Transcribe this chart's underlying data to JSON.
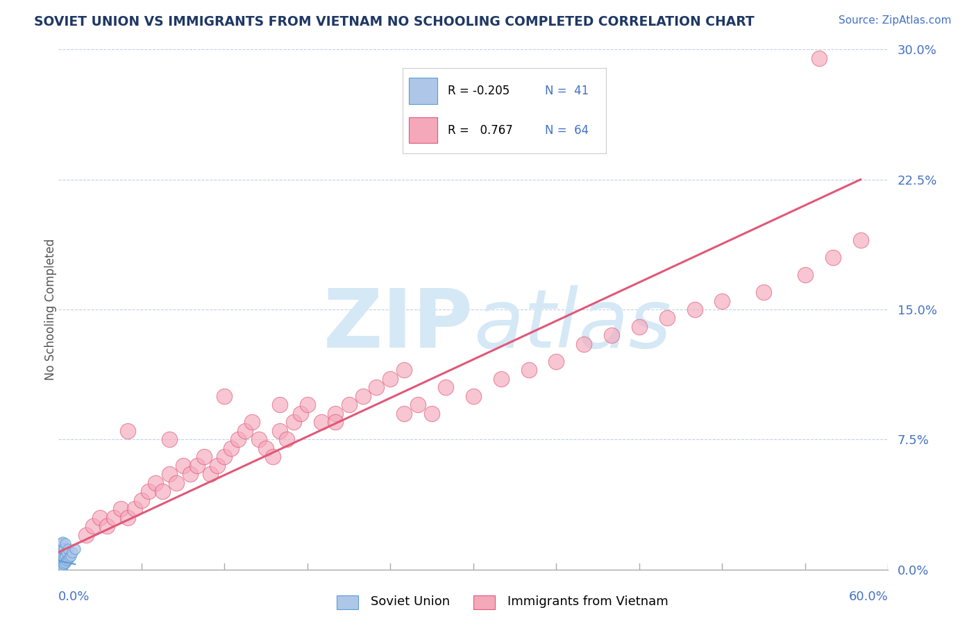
{
  "title": "SOVIET UNION VS IMMIGRANTS FROM VIETNAM NO SCHOOLING COMPLETED CORRELATION CHART",
  "source_text": "Source: ZipAtlas.com",
  "ylabel": "No Schooling Completed",
  "ytick_values": [
    0.0,
    0.075,
    0.15,
    0.225,
    0.3
  ],
  "xmin": 0.0,
  "xmax": 0.6,
  "ymin": 0.0,
  "ymax": 0.3,
  "color_soviet": "#aec6e8",
  "color_vietnam": "#f4a8ba",
  "color_soviet_line": "#5b9bd5",
  "color_vietnam_line": "#e05878",
  "title_color": "#1f3864",
  "axis_color": "#4472c4",
  "grid_color": "#c0d0e8",
  "watermark_color": "#d5e8f5",
  "soviet_x": [
    0.001,
    0.001,
    0.001,
    0.001,
    0.001,
    0.001,
    0.001,
    0.001,
    0.001,
    0.001,
    0.002,
    0.002,
    0.002,
    0.002,
    0.002,
    0.002,
    0.002,
    0.002,
    0.002,
    0.002,
    0.002,
    0.003,
    0.003,
    0.003,
    0.003,
    0.003,
    0.003,
    0.004,
    0.004,
    0.004,
    0.005,
    0.005,
    0.005,
    0.006,
    0.006,
    0.007,
    0.007,
    0.008,
    0.009,
    0.01,
    0.012
  ],
  "soviet_y": [
    0.001,
    0.002,
    0.003,
    0.004,
    0.005,
    0.006,
    0.007,
    0.008,
    0.009,
    0.01,
    0.001,
    0.002,
    0.003,
    0.004,
    0.005,
    0.006,
    0.007,
    0.008,
    0.01,
    0.012,
    0.015,
    0.002,
    0.004,
    0.006,
    0.008,
    0.012,
    0.016,
    0.003,
    0.007,
    0.012,
    0.004,
    0.008,
    0.015,
    0.005,
    0.01,
    0.006,
    0.012,
    0.007,
    0.008,
    0.01,
    0.012
  ],
  "vietnam_x": [
    0.02,
    0.025,
    0.03,
    0.035,
    0.04,
    0.045,
    0.05,
    0.055,
    0.06,
    0.065,
    0.07,
    0.075,
    0.08,
    0.085,
    0.09,
    0.095,
    0.1,
    0.105,
    0.11,
    0.115,
    0.12,
    0.125,
    0.13,
    0.135,
    0.14,
    0.145,
    0.15,
    0.155,
    0.16,
    0.165,
    0.17,
    0.175,
    0.18,
    0.19,
    0.2,
    0.21,
    0.22,
    0.23,
    0.24,
    0.25,
    0.26,
    0.27,
    0.28,
    0.3,
    0.32,
    0.34,
    0.36,
    0.38,
    0.4,
    0.42,
    0.44,
    0.46,
    0.48,
    0.51,
    0.54,
    0.56,
    0.58,
    0.05,
    0.08,
    0.12,
    0.16,
    0.2,
    0.25,
    0.55
  ],
  "vietnam_y": [
    0.02,
    0.025,
    0.03,
    0.025,
    0.03,
    0.035,
    0.03,
    0.035,
    0.04,
    0.045,
    0.05,
    0.045,
    0.055,
    0.05,
    0.06,
    0.055,
    0.06,
    0.065,
    0.055,
    0.06,
    0.065,
    0.07,
    0.075,
    0.08,
    0.085,
    0.075,
    0.07,
    0.065,
    0.08,
    0.075,
    0.085,
    0.09,
    0.095,
    0.085,
    0.09,
    0.095,
    0.1,
    0.105,
    0.11,
    0.115,
    0.095,
    0.09,
    0.105,
    0.1,
    0.11,
    0.115,
    0.12,
    0.13,
    0.135,
    0.14,
    0.145,
    0.15,
    0.155,
    0.16,
    0.17,
    0.18,
    0.19,
    0.08,
    0.075,
    0.1,
    0.095,
    0.085,
    0.09,
    0.295
  ],
  "vietnam_line_x": [
    0.0,
    0.58
  ],
  "vietnam_line_y": [
    0.01,
    0.225
  ],
  "soviet_line_x": [
    0.0,
    0.012
  ],
  "soviet_line_y": [
    0.005,
    0.003
  ]
}
